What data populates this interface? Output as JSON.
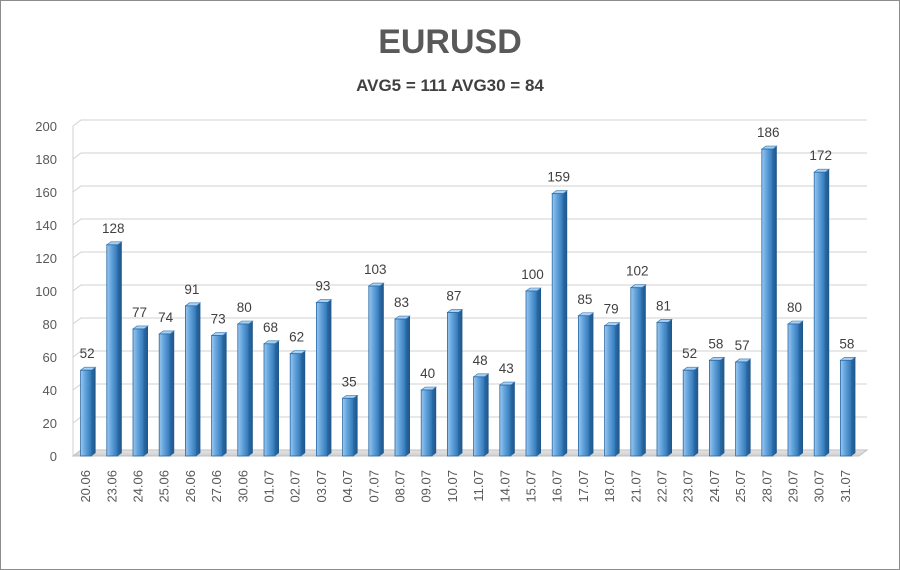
{
  "chart_data": {
    "type": "bar",
    "title": "EURUSD",
    "subtitle": "AVG5 = 111 AVG30 = 84",
    "xlabel": "",
    "ylabel": "",
    "ylim": [
      0,
      200
    ],
    "yticks": [
      0,
      20,
      40,
      60,
      80,
      100,
      120,
      140,
      160,
      180,
      200
    ],
    "grid": true,
    "categories": [
      "20.06",
      "23.06",
      "24.06",
      "25.06",
      "26.06",
      "27.06",
      "30.06",
      "01.07",
      "02.07",
      "03.07",
      "04.07",
      "07.07",
      "08.07",
      "09.07",
      "10.07",
      "11.07",
      "14.07",
      "15.07",
      "16.07",
      "17.07",
      "18.07",
      "21.07",
      "22.07",
      "23.07",
      "24.07",
      "25.07",
      "28.07",
      "29.07",
      "30.07",
      "31.07"
    ],
    "values": [
      52,
      128,
      77,
      74,
      91,
      73,
      80,
      68,
      62,
      93,
      35,
      103,
      83,
      40,
      87,
      48,
      43,
      100,
      159,
      85,
      79,
      102,
      81,
      52,
      58,
      57,
      186,
      80,
      172,
      58
    ],
    "bar_color": "#5b9bd5"
  }
}
